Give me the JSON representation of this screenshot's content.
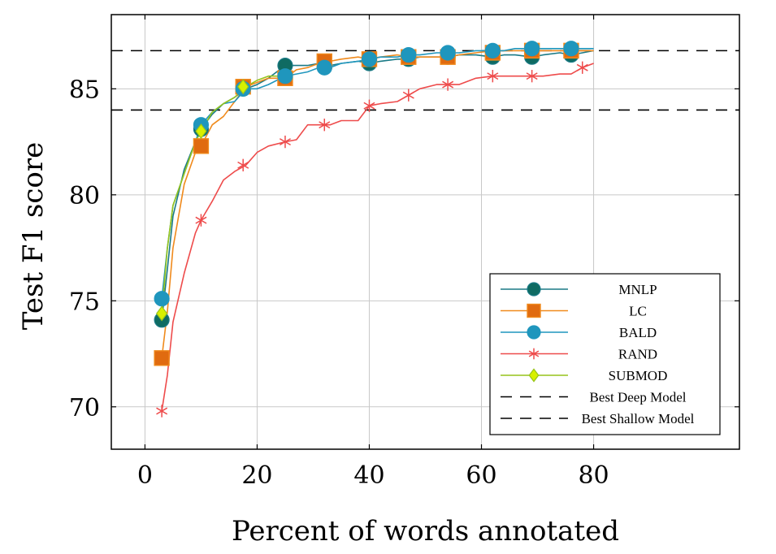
{
  "chart_data": {
    "type": "line",
    "xlabel": "Percent of words annotated",
    "ylabel": "Test F1 score",
    "xlim": [
      -6,
      106
    ],
    "ylim": [
      68,
      88.5
    ],
    "xticks": [
      0,
      20,
      40,
      60,
      80
    ],
    "yticks": [
      70,
      75,
      80,
      85
    ],
    "grid": true,
    "legend_position": "bottom-right",
    "reference_lines": [
      {
        "name": "Best Deep Model",
        "y": 86.8,
        "color": "#000000",
        "dash": "long"
      },
      {
        "name": "Best Shallow Model",
        "y": 84.0,
        "color": "#000000",
        "dash": "long"
      }
    ],
    "series": [
      {
        "name": "MNLP",
        "color": "#1a7a86",
        "marker": "circle",
        "marker_fill": "#0f6b62",
        "x": [
          3,
          4,
          5,
          7,
          9,
          10,
          12,
          14,
          16,
          18,
          20,
          22,
          25,
          27,
          29,
          31,
          33,
          35,
          38,
          40,
          42,
          45,
          47,
          49,
          52,
          54,
          56,
          59,
          62,
          64,
          66,
          69,
          71,
          74,
          76,
          78,
          80
        ],
        "y": [
          74.1,
          76.5,
          79.0,
          81.2,
          82.5,
          83.1,
          83.8,
          84.3,
          84.6,
          85.0,
          85.2,
          85.5,
          86.1,
          86.1,
          86.1,
          86.2,
          86.1,
          86.2,
          86.3,
          86.2,
          86.3,
          86.4,
          86.4,
          86.5,
          86.5,
          86.5,
          86.6,
          86.6,
          86.5,
          86.6,
          86.6,
          86.5,
          86.6,
          86.7,
          86.6,
          86.7,
          86.8
        ],
        "markers_x": [
          3,
          10,
          17.5,
          25,
          40,
          47,
          54,
          62,
          69,
          76
        ],
        "markers_y": [
          74.1,
          83.1,
          85.0,
          86.1,
          86.2,
          86.4,
          86.5,
          86.5,
          86.5,
          86.6
        ]
      },
      {
        "name": "LC",
        "color": "#f08a1c",
        "marker": "square",
        "marker_fill": "#e06b10",
        "x": [
          3,
          4,
          5,
          7,
          9,
          10,
          12,
          14,
          16,
          18,
          20,
          22,
          25,
          27,
          29,
          31,
          33,
          35,
          38,
          40,
          42,
          45,
          47,
          49,
          52,
          54,
          56,
          59,
          62,
          64,
          66,
          69,
          71,
          74,
          76,
          78,
          80
        ],
        "y": [
          72.3,
          74.5,
          77.5,
          80.5,
          82.0,
          82.3,
          83.3,
          83.7,
          84.4,
          85.1,
          85.3,
          85.5,
          85.5,
          85.9,
          86.0,
          86.2,
          86.3,
          86.4,
          86.5,
          86.4,
          86.5,
          86.6,
          86.5,
          86.5,
          86.5,
          86.5,
          86.6,
          86.7,
          86.8,
          86.8,
          86.8,
          86.8,
          86.8,
          86.8,
          86.8,
          86.8,
          86.8
        ],
        "markers_x": [
          3,
          10,
          17.5,
          25,
          32,
          40,
          47,
          54,
          62,
          69,
          76
        ],
        "markers_y": [
          72.3,
          82.3,
          85.1,
          85.5,
          86.3,
          86.4,
          86.5,
          86.5,
          86.7,
          86.8,
          86.8
        ]
      },
      {
        "name": "BALD",
        "color": "#1f96bd",
        "marker": "circle",
        "marker_fill": "#1f96bd",
        "x": [
          3,
          4,
          5,
          7,
          9,
          10,
          12,
          14,
          16,
          18,
          20,
          22,
          25,
          27,
          29,
          31,
          33,
          35,
          38,
          40,
          42,
          45,
          47,
          49,
          52,
          54,
          56,
          59,
          62,
          64,
          66,
          69,
          71,
          74,
          76,
          78,
          80
        ],
        "y": [
          75.1,
          77.5,
          79.5,
          81.0,
          82.5,
          83.3,
          83.9,
          84.3,
          84.4,
          85.0,
          85.0,
          85.2,
          85.6,
          85.7,
          85.8,
          86.0,
          86.0,
          86.2,
          86.3,
          86.4,
          86.5,
          86.5,
          86.6,
          86.6,
          86.7,
          86.7,
          86.7,
          86.8,
          86.8,
          86.8,
          86.9,
          86.9,
          86.9,
          86.9,
          86.9,
          86.9,
          86.9
        ],
        "markers_x": [
          3,
          10,
          17.5,
          25,
          32,
          40,
          47,
          54,
          62,
          69,
          76
        ],
        "markers_y": [
          75.1,
          83.3,
          85.0,
          85.6,
          86.0,
          86.4,
          86.6,
          86.7,
          86.8,
          86.9,
          86.9
        ]
      },
      {
        "name": "RAND",
        "color": "#ee4b4b",
        "marker": "asterisk",
        "marker_fill": "#ee4b4b",
        "x": [
          3,
          4,
          5,
          7,
          9,
          10,
          12,
          14,
          16,
          18,
          20,
          22,
          25,
          27,
          29,
          31,
          33,
          35,
          38,
          40,
          42,
          45,
          47,
          49,
          52,
          54,
          56,
          59,
          62,
          64,
          66,
          69,
          71,
          74,
          76,
          78,
          80
        ],
        "y": [
          69.8,
          71.5,
          74.0,
          76.3,
          78.2,
          78.8,
          79.7,
          80.7,
          81.1,
          81.4,
          82.0,
          82.3,
          82.5,
          82.6,
          83.3,
          83.3,
          83.3,
          83.5,
          83.5,
          84.2,
          84.3,
          84.4,
          84.7,
          85.0,
          85.2,
          85.2,
          85.2,
          85.5,
          85.6,
          85.6,
          85.6,
          85.6,
          85.6,
          85.7,
          85.7,
          86.0,
          86.2
        ],
        "markers_x": [
          3,
          10,
          17.5,
          25,
          32,
          40,
          47,
          54,
          62,
          69,
          78
        ],
        "markers_y": [
          69.8,
          78.8,
          81.4,
          82.5,
          83.3,
          84.2,
          84.7,
          85.2,
          85.6,
          85.6,
          86.0
        ]
      },
      {
        "name": "SUBMOD",
        "color": "#97c41b",
        "marker": "diamond",
        "marker_fill": "#d8f000",
        "x": [
          3,
          4,
          5,
          7,
          9,
          10,
          12,
          14,
          16,
          18,
          20,
          22,
          24
        ],
        "y": [
          74.4,
          77.5,
          79.5,
          81.0,
          82.5,
          83.0,
          83.9,
          84.3,
          84.6,
          85.1,
          85.4,
          85.6,
          85.6
        ],
        "markers_x": [
          3,
          10,
          17.5
        ],
        "markers_y": [
          74.4,
          83.0,
          85.1
        ]
      }
    ]
  }
}
